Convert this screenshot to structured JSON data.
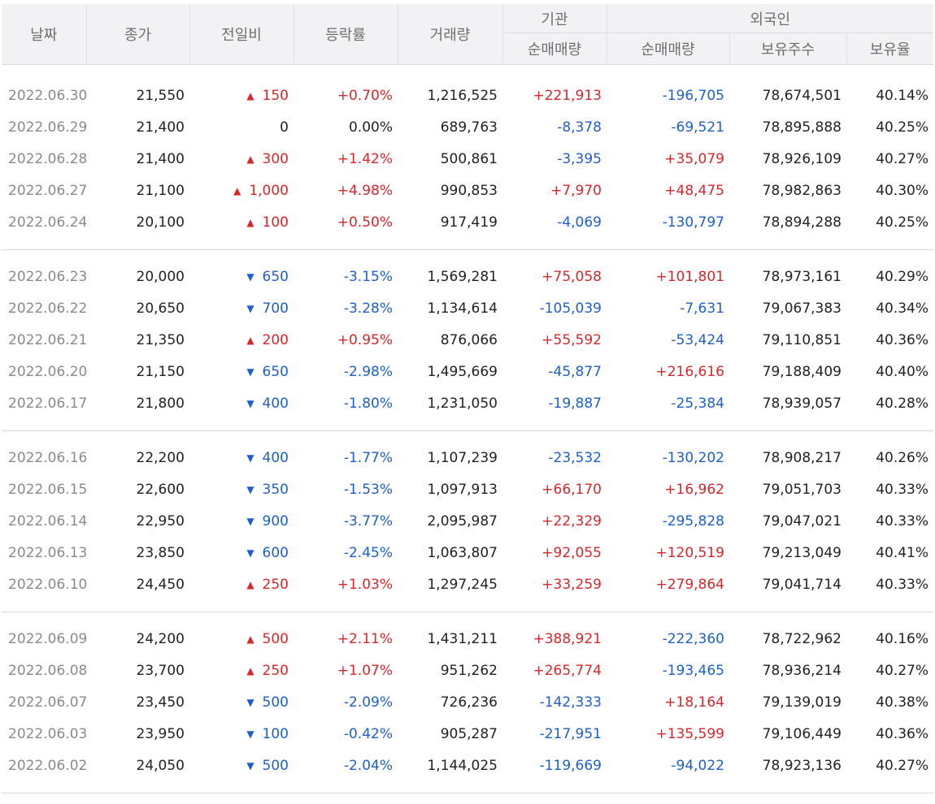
{
  "header": {
    "date": "날짜",
    "close": "종가",
    "diff": "전일비",
    "rate": "등락률",
    "volume": "거래량",
    "institution": "기관",
    "foreign": "외국인",
    "inst_net": "순매매량",
    "foreign_net": "순매매량",
    "foreign_hold": "보유주수",
    "foreign_rate": "보유율"
  },
  "colors": {
    "up": "#d8262a",
    "down": "#1e5fc9",
    "header_bg": "#f2f2f4"
  },
  "groups": [
    [
      {
        "date": "2022.06.30",
        "close": "21,550",
        "dir": "up",
        "diff": "150",
        "rate": "+0.70%",
        "volume": "1,216,525",
        "inst": "+221,913",
        "foreign": "-196,705",
        "hold": "78,674,501",
        "hold_rate": "40.14%"
      },
      {
        "date": "2022.06.29",
        "close": "21,400",
        "dir": "none",
        "diff": "0",
        "rate": "0.00%",
        "volume": "689,763",
        "inst": "-8,378",
        "foreign": "-69,521",
        "hold": "78,895,888",
        "hold_rate": "40.25%"
      },
      {
        "date": "2022.06.28",
        "close": "21,400",
        "dir": "up",
        "diff": "300",
        "rate": "+1.42%",
        "volume": "500,861",
        "inst": "-3,395",
        "foreign": "+35,079",
        "hold": "78,926,109",
        "hold_rate": "40.27%"
      },
      {
        "date": "2022.06.27",
        "close": "21,100",
        "dir": "up",
        "diff": "1,000",
        "rate": "+4.98%",
        "volume": "990,853",
        "inst": "+7,970",
        "foreign": "+48,475",
        "hold": "78,982,863",
        "hold_rate": "40.30%"
      },
      {
        "date": "2022.06.24",
        "close": "20,100",
        "dir": "up",
        "diff": "100",
        "rate": "+0.50%",
        "volume": "917,419",
        "inst": "-4,069",
        "foreign": "-130,797",
        "hold": "78,894,288",
        "hold_rate": "40.25%"
      }
    ],
    [
      {
        "date": "2022.06.23",
        "close": "20,000",
        "dir": "down",
        "diff": "650",
        "rate": "-3.15%",
        "volume": "1,569,281",
        "inst": "+75,058",
        "foreign": "+101,801",
        "hold": "78,973,161",
        "hold_rate": "40.29%"
      },
      {
        "date": "2022.06.22",
        "close": "20,650",
        "dir": "down",
        "diff": "700",
        "rate": "-3.28%",
        "volume": "1,134,614",
        "inst": "-105,039",
        "foreign": "-7,631",
        "hold": "79,067,383",
        "hold_rate": "40.34%"
      },
      {
        "date": "2022.06.21",
        "close": "21,350",
        "dir": "up",
        "diff": "200",
        "rate": "+0.95%",
        "volume": "876,066",
        "inst": "+55,592",
        "foreign": "-53,424",
        "hold": "79,110,851",
        "hold_rate": "40.36%"
      },
      {
        "date": "2022.06.20",
        "close": "21,150",
        "dir": "down",
        "diff": "650",
        "rate": "-2.98%",
        "volume": "1,495,669",
        "inst": "-45,877",
        "foreign": "+216,616",
        "hold": "79,188,409",
        "hold_rate": "40.40%"
      },
      {
        "date": "2022.06.17",
        "close": "21,800",
        "dir": "down",
        "diff": "400",
        "rate": "-1.80%",
        "volume": "1,231,050",
        "inst": "-19,887",
        "foreign": "-25,384",
        "hold": "78,939,057",
        "hold_rate": "40.28%"
      }
    ],
    [
      {
        "date": "2022.06.16",
        "close": "22,200",
        "dir": "down",
        "diff": "400",
        "rate": "-1.77%",
        "volume": "1,107,239",
        "inst": "-23,532",
        "foreign": "-130,202",
        "hold": "78,908,217",
        "hold_rate": "40.26%"
      },
      {
        "date": "2022.06.15",
        "close": "22,600",
        "dir": "down",
        "diff": "350",
        "rate": "-1.53%",
        "volume": "1,097,913",
        "inst": "+66,170",
        "foreign": "+16,962",
        "hold": "79,051,703",
        "hold_rate": "40.33%"
      },
      {
        "date": "2022.06.14",
        "close": "22,950",
        "dir": "down",
        "diff": "900",
        "rate": "-3.77%",
        "volume": "2,095,987",
        "inst": "+22,329",
        "foreign": "-295,828",
        "hold": "79,047,021",
        "hold_rate": "40.33%"
      },
      {
        "date": "2022.06.13",
        "close": "23,850",
        "dir": "down",
        "diff": "600",
        "rate": "-2.45%",
        "volume": "1,063,807",
        "inst": "+92,055",
        "foreign": "+120,519",
        "hold": "79,213,049",
        "hold_rate": "40.41%"
      },
      {
        "date": "2022.06.10",
        "close": "24,450",
        "dir": "up",
        "diff": "250",
        "rate": "+1.03%",
        "volume": "1,297,245",
        "inst": "+33,259",
        "foreign": "+279,864",
        "hold": "79,041,714",
        "hold_rate": "40.33%"
      }
    ],
    [
      {
        "date": "2022.06.09",
        "close": "24,200",
        "dir": "up",
        "diff": "500",
        "rate": "+2.11%",
        "volume": "1,431,211",
        "inst": "+388,921",
        "foreign": "-222,360",
        "hold": "78,722,962",
        "hold_rate": "40.16%"
      },
      {
        "date": "2022.06.08",
        "close": "23,700",
        "dir": "up",
        "diff": "250",
        "rate": "+1.07%",
        "volume": "951,262",
        "inst": "+265,774",
        "foreign": "-193,465",
        "hold": "78,936,214",
        "hold_rate": "40.27%"
      },
      {
        "date": "2022.06.07",
        "close": "23,450",
        "dir": "down",
        "diff": "500",
        "rate": "-2.09%",
        "volume": "726,236",
        "inst": "-142,333",
        "foreign": "+18,164",
        "hold": "79,139,019",
        "hold_rate": "40.38%"
      },
      {
        "date": "2022.06.03",
        "close": "23,950",
        "dir": "down",
        "diff": "100",
        "rate": "-0.42%",
        "volume": "905,287",
        "inst": "-217,951",
        "foreign": "+135,599",
        "hold": "79,106,449",
        "hold_rate": "40.36%"
      },
      {
        "date": "2022.06.02",
        "close": "24,050",
        "dir": "down",
        "diff": "500",
        "rate": "-2.04%",
        "volume": "1,144,025",
        "inst": "-119,669",
        "foreign": "-94,022",
        "hold": "78,923,136",
        "hold_rate": "40.27%"
      }
    ]
  ]
}
